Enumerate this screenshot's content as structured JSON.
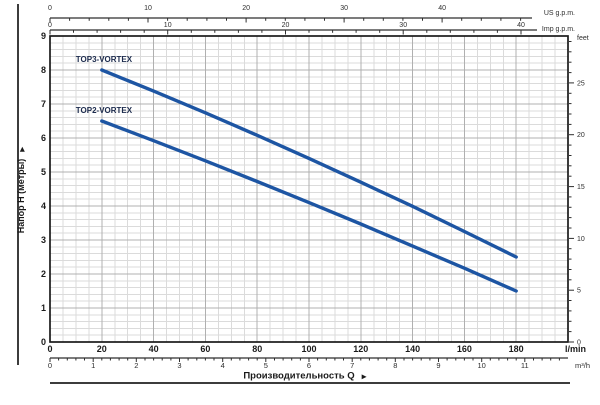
{
  "chart_data": {
    "type": "line",
    "title": "",
    "x_title": "Производительность Q",
    "x_title_arrow": "▶",
    "y_title": "Напор H (метры)",
    "y_title_arrow": "▶",
    "grid": true,
    "legend": "inline-labels",
    "axes": {
      "x_main": {
        "unit_label": "l/min",
        "min": 0,
        "max": 200,
        "major_ticks": [
          0,
          20,
          40,
          60,
          80,
          100,
          120,
          140,
          160,
          180
        ],
        "minor_step": 5
      },
      "x_m3h": {
        "unit_label": "m³/h",
        "major_ticks": [
          0,
          1,
          2,
          3,
          4,
          5,
          6,
          7,
          8,
          9,
          10,
          11
        ],
        "minor_step": 0.2,
        "lmin_per_unit": 16.6667
      },
      "x_usgpm": {
        "unit_label": "US g.p.m.",
        "major_ticks": [
          0,
          10,
          20,
          30,
          40
        ],
        "minor_step": 2,
        "lmin_per_unit": 3.785
      },
      "x_impgpm": {
        "unit_label": "Imp g.p.m.",
        "major_ticks": [
          0,
          10,
          20,
          30,
          40
        ],
        "minor_step": 2,
        "lmin_per_unit": 4.546
      },
      "y_main": {
        "min": 0,
        "max": 9,
        "major_ticks": [
          0,
          1,
          2,
          3,
          4,
          5,
          6,
          7,
          8,
          9
        ],
        "minor_step": 0.2
      },
      "y_feet": {
        "unit_label": "feet",
        "major_ticks": [
          0,
          5,
          10,
          15,
          20,
          25
        ],
        "minor_step": 1,
        "meters_per_foot": 0.3048
      }
    },
    "series": [
      {
        "name": "TOP3-VORTEX",
        "points": [
          [
            20,
            8.0
          ],
          [
            40,
            7.38
          ],
          [
            60,
            6.74
          ],
          [
            80,
            6.08
          ],
          [
            100,
            5.4
          ],
          [
            120,
            4.7
          ],
          [
            140,
            3.99
          ],
          [
            160,
            3.25
          ],
          [
            180,
            2.5
          ]
        ]
      },
      {
        "name": "TOP2-VORTEX",
        "points": [
          [
            20,
            6.5
          ],
          [
            40,
            5.92
          ],
          [
            60,
            5.33
          ],
          [
            80,
            4.72
          ],
          [
            100,
            4.1
          ],
          [
            120,
            3.47
          ],
          [
            140,
            2.82
          ],
          [
            160,
            2.17
          ],
          [
            180,
            1.5
          ]
        ]
      }
    ],
    "colors": {
      "curve": "#1d55a3",
      "series_label": "#1c2b4d",
      "grid_minor": "#dbdbdb",
      "grid_major": "#b0b0b0",
      "frame": "#1a1a1a",
      "text_primary": "#1a1a1a",
      "text_secondary": "#2e2e2e",
      "page_rule": "#3c3c3c"
    }
  }
}
